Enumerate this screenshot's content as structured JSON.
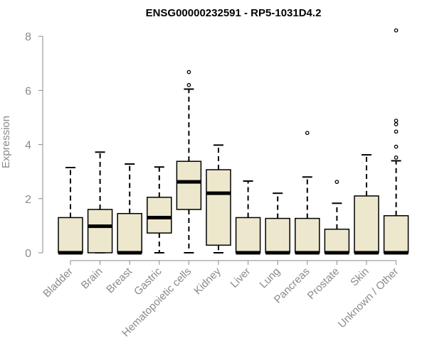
{
  "chart_data": {
    "type": "box",
    "title": "ENSG00000232591 - RP5-1031D4.2",
    "xlabel": "",
    "ylabel": "Expression",
    "ylim": [
      0,
      8.3
    ],
    "yticks": [
      0,
      2,
      4,
      6,
      8
    ],
    "grid": false,
    "legend": "none",
    "box_fill": "#ede7cd",
    "categories": [
      "Bladder",
      "Brain",
      "Breast",
      "Gastric",
      "Hematopoietic cells",
      "Kidney",
      "Liver",
      "Lung",
      "Pancreas",
      "Prostate",
      "Skin",
      "Unknown / Other"
    ],
    "boxes": [
      {
        "category": "Bladder",
        "whisker_low": 0,
        "q1": 0,
        "median": 0,
        "q3": 1.3,
        "whisker_high": 3.15,
        "outliers": []
      },
      {
        "category": "Brain",
        "whisker_low": 0,
        "q1": 0,
        "median": 0.98,
        "q3": 1.6,
        "whisker_high": 3.72,
        "outliers": []
      },
      {
        "category": "Breast",
        "whisker_low": 0,
        "q1": 0,
        "median": 0,
        "q3": 1.45,
        "whisker_high": 3.28,
        "outliers": []
      },
      {
        "category": "Gastric",
        "whisker_low": 0,
        "q1": 0.73,
        "median": 1.3,
        "q3": 2.05,
        "whisker_high": 3.17,
        "outliers": []
      },
      {
        "category": "Hematopoietic cells",
        "whisker_low": 0,
        "q1": 1.6,
        "median": 2.62,
        "q3": 3.38,
        "whisker_high": 6.05,
        "outliers": [
          6.2,
          6.68
        ]
      },
      {
        "category": "Kidney",
        "whisker_low": 0,
        "q1": 0.28,
        "median": 2.2,
        "q3": 3.07,
        "whisker_high": 3.98,
        "outliers": []
      },
      {
        "category": "Liver",
        "whisker_low": 0,
        "q1": 0,
        "median": 0,
        "q3": 1.3,
        "whisker_high": 2.65,
        "outliers": []
      },
      {
        "category": "Lung",
        "whisker_low": 0,
        "q1": 0,
        "median": 0,
        "q3": 1.27,
        "whisker_high": 2.2,
        "outliers": []
      },
      {
        "category": "Pancreas",
        "whisker_low": 0,
        "q1": 0,
        "median": 0,
        "q3": 1.27,
        "whisker_high": 2.8,
        "outliers": [
          4.43
        ]
      },
      {
        "category": "Prostate",
        "whisker_low": 0,
        "q1": 0,
        "median": 0,
        "q3": 0.87,
        "whisker_high": 1.83,
        "outliers": [
          2.62
        ]
      },
      {
        "category": "Skin",
        "whisker_low": 0,
        "q1": 0,
        "median": 0,
        "q3": 2.1,
        "whisker_high": 3.62,
        "outliers": []
      },
      {
        "category": "Unknown / Other",
        "whisker_low": 0,
        "q1": 0,
        "median": 0,
        "q3": 1.37,
        "whisker_high": 3.4,
        "outliers": [
          3.52,
          3.92,
          4.48,
          4.75,
          4.88,
          8.22
        ]
      }
    ]
  }
}
